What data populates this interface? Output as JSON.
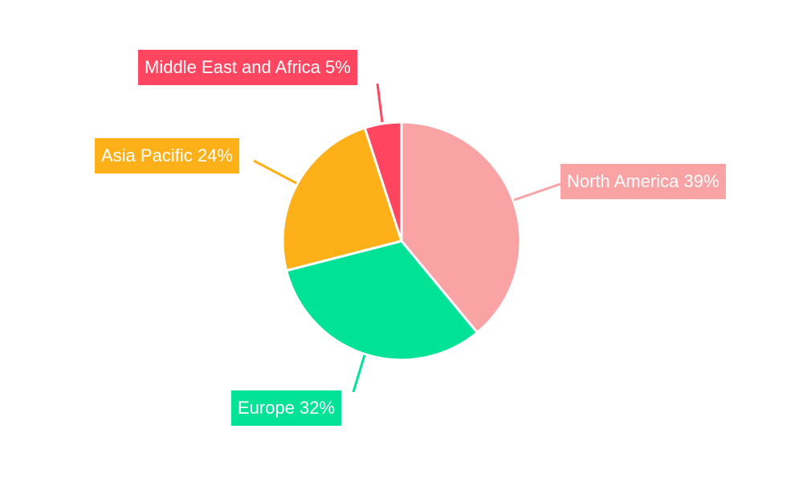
{
  "chart_data": {
    "type": "pie",
    "start_angle": "top, clockwise",
    "categories": [
      "North America",
      "Europe",
      "Asia Pacific",
      "Middle East and Africa"
    ],
    "values": [
      39,
      32,
      24,
      5
    ],
    "unit": "%",
    "colors": [
      "#F9A3A4",
      "#00E396",
      "#FEB019",
      "#FF4560"
    ],
    "labels": [
      "North America 39%",
      "Europe 32%",
      "Asia Pacific 24%",
      "Middle East and Africa 5%"
    ],
    "legend": "none"
  }
}
